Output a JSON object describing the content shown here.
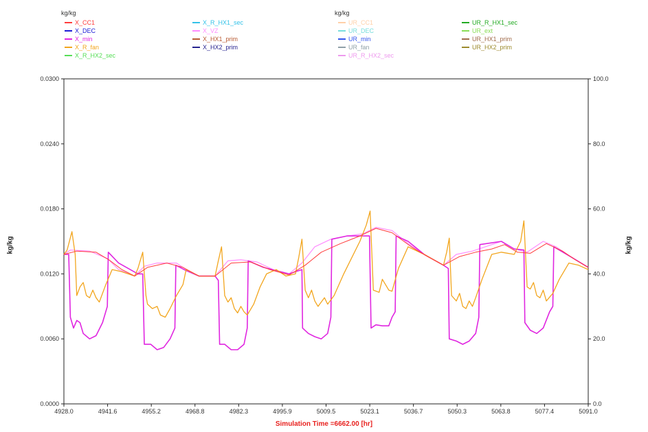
{
  "chart_data": {
    "type": "line",
    "left_unit": "kg/kg",
    "right_unit": "kg/kg",
    "ylabel_left": "kg/kg",
    "ylabel_right": "kg/kg",
    "xlabel": "Simulation Time =6662.00 [hr]",
    "xlim": [
      4928.0,
      5091.0
    ],
    "ylim_left": [
      0.0,
      0.03
    ],
    "ylim_right": [
      0.0,
      100.0
    ],
    "x_ticks": [
      "4928.0",
      "4941.6",
      "4955.2",
      "4968.8",
      "4982.3",
      "4995.9",
      "5009.5",
      "5023.1",
      "5036.7",
      "5050.3",
      "5063.8",
      "5077.4",
      "5091.0"
    ],
    "y_left_ticks": [
      "0.0000",
      "0.0060",
      "0.0120",
      "0.0180",
      "0.0240",
      "0.0300"
    ],
    "y_right_ticks": [
      "0.0",
      "20.0",
      "40.0",
      "60.0",
      "80.0",
      "100.0"
    ],
    "grid": false,
    "legend_left": [
      {
        "name": "X_CC1",
        "color": "#ff3b3b"
      },
      {
        "name": "X_DEC",
        "color": "#1b1bd6"
      },
      {
        "name": "X_min",
        "color": "#e026e0"
      },
      {
        "name": "X_R_fan",
        "color": "#f2a51d"
      },
      {
        "name": "X_R_HX2_sec",
        "color": "#55dd55"
      },
      {
        "name": "X_R_HX1_sec",
        "color": "#33c2e8"
      },
      {
        "name": "X_VZ",
        "color": "#ff8cff"
      },
      {
        "name": "X_HX1_prim",
        "color": "#b85a32"
      },
      {
        "name": "X_HX2_prim",
        "color": "#26238f"
      }
    ],
    "legend_right": [
      {
        "name": "UR_CC1",
        "color": "#ffd0a8"
      },
      {
        "name": "UR_DEC",
        "color": "#77dddd"
      },
      {
        "name": "UR_min",
        "color": "#3355ee"
      },
      {
        "name": "UR_fan",
        "color": "#8fa0a8"
      },
      {
        "name": "UR_R_HX2_sec",
        "color": "#ee99ee"
      },
      {
        "name": "UR_R_HX1_sec",
        "color": "#22aa22"
      },
      {
        "name": "UR_ext",
        "color": "#88dd55"
      },
      {
        "name": "UR_HX1_prim",
        "color": "#a06b4a"
      },
      {
        "name": "UR_HX2_prim",
        "color": "#9c8a2c"
      }
    ],
    "series": [
      {
        "name": "X_VZ",
        "axis": "left",
        "color": "#ff8cff",
        "width": 1.2,
        "points": [
          [
            4928.0,
            0.0138
          ],
          [
            4930.0,
            0.0142
          ],
          [
            4936.0,
            0.0141
          ],
          [
            4941.6,
            0.0134
          ],
          [
            4945.0,
            0.0124
          ],
          [
            4950.0,
            0.0118
          ],
          [
            4953.0,
            0.0127
          ],
          [
            4957.0,
            0.013
          ],
          [
            4963.0,
            0.013
          ],
          [
            4966.0,
            0.0124
          ],
          [
            4970.0,
            0.0118
          ],
          [
            4975.0,
            0.0118
          ],
          [
            4979.0,
            0.0132
          ],
          [
            4983.0,
            0.0133
          ],
          [
            4988.0,
            0.0131
          ],
          [
            4993.0,
            0.0124
          ],
          [
            4998.0,
            0.012
          ],
          [
            5002.0,
            0.013
          ],
          [
            5006.0,
            0.0145
          ],
          [
            5011.0,
            0.0152
          ],
          [
            5016.0,
            0.0155
          ],
          [
            5021.0,
            0.0157
          ],
          [
            5025.0,
            0.0163
          ],
          [
            5030.0,
            0.016
          ],
          [
            5035.0,
            0.0148
          ],
          [
            5040.0,
            0.0138
          ],
          [
            5046.0,
            0.0128
          ],
          [
            5050.0,
            0.0138
          ],
          [
            5055.0,
            0.0141
          ],
          [
            5060.0,
            0.0146
          ],
          [
            5064.0,
            0.015
          ],
          [
            5068.0,
            0.0143
          ],
          [
            5072.0,
            0.014
          ],
          [
            5077.0,
            0.015
          ],
          [
            5081.0,
            0.0145
          ],
          [
            5086.0,
            0.0135
          ],
          [
            5091.0,
            0.0126
          ]
        ]
      },
      {
        "name": "X_min",
        "axis": "left",
        "color": "#e026e0",
        "width": 1.6,
        "points": [
          [
            4928.0,
            0.0138
          ],
          [
            4929.5,
            0.0138
          ],
          [
            4930.0,
            0.008
          ],
          [
            4931.0,
            0.007
          ],
          [
            4932.0,
            0.0077
          ],
          [
            4933.0,
            0.0075
          ],
          [
            4934.0,
            0.0065
          ],
          [
            4936.0,
            0.006
          ],
          [
            4938.0,
            0.0063
          ],
          [
            4940.0,
            0.0075
          ],
          [
            4941.5,
            0.009
          ],
          [
            4941.8,
            0.014
          ],
          [
            4945.0,
            0.013
          ],
          [
            4951.0,
            0.012
          ],
          [
            4952.5,
            0.012
          ],
          [
            4953.0,
            0.0055
          ],
          [
            4955.0,
            0.0055
          ],
          [
            4957.0,
            0.005
          ],
          [
            4959.0,
            0.0052
          ],
          [
            4961.0,
            0.006
          ],
          [
            4962.5,
            0.007
          ],
          [
            4962.8,
            0.0128
          ],
          [
            4966.0,
            0.0123
          ],
          [
            4970.0,
            0.0118
          ],
          [
            4975.0,
            0.0118
          ],
          [
            4976.0,
            0.0114
          ],
          [
            4976.4,
            0.0055
          ],
          [
            4978.0,
            0.0055
          ],
          [
            4980.0,
            0.005
          ],
          [
            4982.0,
            0.005
          ],
          [
            4984.0,
            0.0055
          ],
          [
            4985.0,
            0.007
          ],
          [
            4985.3,
            0.0132
          ],
          [
            4990.0,
            0.0126
          ],
          [
            4998.0,
            0.012
          ],
          [
            5002.0,
            0.0124
          ],
          [
            5002.2,
            0.007
          ],
          [
            5004.0,
            0.0065
          ],
          [
            5006.0,
            0.0062
          ],
          [
            5008.0,
            0.006
          ],
          [
            5010.0,
            0.0065
          ],
          [
            5011.0,
            0.008
          ],
          [
            5011.3,
            0.0152
          ],
          [
            5016.0,
            0.0155
          ],
          [
            5022.0,
            0.0155
          ],
          [
            5023.0,
            0.0155
          ],
          [
            5023.5,
            0.007
          ],
          [
            5025.0,
            0.0073
          ],
          [
            5027.0,
            0.0072
          ],
          [
            5029.0,
            0.0072
          ],
          [
            5030.0,
            0.008
          ],
          [
            5031.0,
            0.0085
          ],
          [
            5031.3,
            0.0155
          ],
          [
            5035.0,
            0.015
          ],
          [
            5040.0,
            0.0138
          ],
          [
            5046.0,
            0.0128
          ],
          [
            5047.5,
            0.0125
          ],
          [
            5047.8,
            0.006
          ],
          [
            5050.0,
            0.0058
          ],
          [
            5052.0,
            0.0055
          ],
          [
            5054.0,
            0.0058
          ],
          [
            5056.0,
            0.0065
          ],
          [
            5057.0,
            0.008
          ],
          [
            5057.3,
            0.0147
          ],
          [
            5064.0,
            0.015
          ],
          [
            5068.0,
            0.0143
          ],
          [
            5071.0,
            0.0142
          ],
          [
            5071.3,
            0.0075
          ],
          [
            5073.0,
            0.0068
          ],
          [
            5075.0,
            0.0065
          ],
          [
            5077.0,
            0.007
          ],
          [
            5079.0,
            0.0085
          ],
          [
            5080.0,
            0.009
          ],
          [
            5080.3,
            0.0145
          ],
          [
            5086.0,
            0.0135
          ],
          [
            5091.0,
            0.0126
          ]
        ]
      },
      {
        "name": "X_R_fan",
        "axis": "left",
        "color": "#f2a51d",
        "width": 1.3,
        "points": [
          [
            4928.0,
            0.0138
          ],
          [
            4929.0,
            0.0142
          ],
          [
            4930.5,
            0.0159
          ],
          [
            4931.5,
            0.0138
          ],
          [
            4932.0,
            0.01
          ],
          [
            4933.0,
            0.0108
          ],
          [
            4934.0,
            0.0112
          ],
          [
            4935.0,
            0.01
          ],
          [
            4936.0,
            0.0098
          ],
          [
            4937.0,
            0.0105
          ],
          [
            4938.0,
            0.0098
          ],
          [
            4939.0,
            0.0094
          ],
          [
            4941.0,
            0.011
          ],
          [
            4943.0,
            0.0124
          ],
          [
            4946.0,
            0.0122
          ],
          [
            4950.0,
            0.0118
          ],
          [
            4951.0,
            0.0125
          ],
          [
            4952.5,
            0.014
          ],
          [
            4953.5,
            0.01
          ],
          [
            4954.0,
            0.0092
          ],
          [
            4955.5,
            0.0088
          ],
          [
            4957.0,
            0.009
          ],
          [
            4958.0,
            0.0082
          ],
          [
            4959.5,
            0.008
          ],
          [
            4961.0,
            0.0088
          ],
          [
            4963.0,
            0.01
          ],
          [
            4965.0,
            0.011
          ],
          [
            4966.0,
            0.0124
          ],
          [
            4970.0,
            0.0118
          ],
          [
            4975.0,
            0.0118
          ],
          [
            4976.0,
            0.0132
          ],
          [
            4977.0,
            0.0145
          ],
          [
            4978.0,
            0.01
          ],
          [
            4979.0,
            0.0094
          ],
          [
            4980.0,
            0.0098
          ],
          [
            4981.0,
            0.0088
          ],
          [
            4982.0,
            0.0084
          ],
          [
            4983.0,
            0.009
          ],
          [
            4984.0,
            0.0085
          ],
          [
            4985.0,
            0.0082
          ],
          [
            4987.0,
            0.0092
          ],
          [
            4989.0,
            0.0108
          ],
          [
            4991.0,
            0.012
          ],
          [
            4994.0,
            0.0124
          ],
          [
            4997.0,
            0.0118
          ],
          [
            5000.0,
            0.012
          ],
          [
            5001.0,
            0.0135
          ],
          [
            5002.0,
            0.0152
          ],
          [
            5003.0,
            0.0105
          ],
          [
            5004.0,
            0.0098
          ],
          [
            5005.0,
            0.0105
          ],
          [
            5006.0,
            0.0095
          ],
          [
            5007.0,
            0.009
          ],
          [
            5008.0,
            0.0094
          ],
          [
            5009.0,
            0.0098
          ],
          [
            5010.0,
            0.0092
          ],
          [
            5012.0,
            0.01
          ],
          [
            5015.0,
            0.012
          ],
          [
            5020.0,
            0.015
          ],
          [
            5022.0,
            0.0165
          ],
          [
            5023.2,
            0.0178
          ],
          [
            5024.2,
            0.0105
          ],
          [
            5026.0,
            0.0103
          ],
          [
            5027.0,
            0.0115
          ],
          [
            5028.0,
            0.011
          ],
          [
            5029.0,
            0.0105
          ],
          [
            5030.0,
            0.0104
          ],
          [
            5032.0,
            0.0125
          ],
          [
            5035.0,
            0.0145
          ],
          [
            5040.0,
            0.0138
          ],
          [
            5046.0,
            0.0128
          ],
          [
            5047.0,
            0.014
          ],
          [
            5047.8,
            0.0153
          ],
          [
            5048.5,
            0.01
          ],
          [
            5050.0,
            0.0095
          ],
          [
            5051.0,
            0.0102
          ],
          [
            5052.0,
            0.009
          ],
          [
            5053.0,
            0.0088
          ],
          [
            5054.0,
            0.0095
          ],
          [
            5055.0,
            0.009
          ],
          [
            5056.0,
            0.0098
          ],
          [
            5058.0,
            0.0115
          ],
          [
            5061.0,
            0.0138
          ],
          [
            5064.0,
            0.014
          ],
          [
            5068.0,
            0.0138
          ],
          [
            5070.0,
            0.015
          ],
          [
            5071.0,
            0.0169
          ],
          [
            5072.0,
            0.0108
          ],
          [
            5073.0,
            0.0106
          ],
          [
            5074.0,
            0.0112
          ],
          [
            5075.0,
            0.01
          ],
          [
            5076.0,
            0.0098
          ],
          [
            5077.0,
            0.0105
          ],
          [
            5078.0,
            0.0095
          ],
          [
            5080.0,
            0.0102
          ],
          [
            5082.0,
            0.0115
          ],
          [
            5085.0,
            0.013
          ],
          [
            5088.0,
            0.0128
          ],
          [
            5091.0,
            0.0124
          ]
        ]
      },
      {
        "name": "X_CC1",
        "axis": "left",
        "color": "#ff3b3b",
        "width": 1.0,
        "points": [
          [
            4928.0,
            0.0138
          ],
          [
            4932.0,
            0.0141
          ],
          [
            4938.0,
            0.014
          ],
          [
            4942.0,
            0.0133
          ],
          [
            4946.0,
            0.0124
          ],
          [
            4950.0,
            0.0118
          ],
          [
            4954.0,
            0.0126
          ],
          [
            4960.0,
            0.013
          ],
          [
            4965.0,
            0.0126
          ],
          [
            4970.0,
            0.0118
          ],
          [
            4975.0,
            0.0118
          ],
          [
            4980.0,
            0.013
          ],
          [
            4986.0,
            0.0131
          ],
          [
            4992.0,
            0.0124
          ],
          [
            4998.0,
            0.0119
          ],
          [
            5003.0,
            0.0128
          ],
          [
            5008.0,
            0.014
          ],
          [
            5014.0,
            0.0148
          ],
          [
            5020.0,
            0.0155
          ],
          [
            5025.0,
            0.0162
          ],
          [
            5030.0,
            0.0158
          ],
          [
            5036.0,
            0.0145
          ],
          [
            5041.0,
            0.0136
          ],
          [
            5046.0,
            0.0128
          ],
          [
            5051.0,
            0.0136
          ],
          [
            5056.0,
            0.014
          ],
          [
            5061.0,
            0.0143
          ],
          [
            5065.0,
            0.0147
          ],
          [
            5069.0,
            0.014
          ],
          [
            5073.0,
            0.0139
          ],
          [
            5078.0,
            0.0148
          ],
          [
            5083.0,
            0.0141
          ],
          [
            5087.0,
            0.0133
          ],
          [
            5091.0,
            0.0126
          ]
        ]
      }
    ]
  }
}
